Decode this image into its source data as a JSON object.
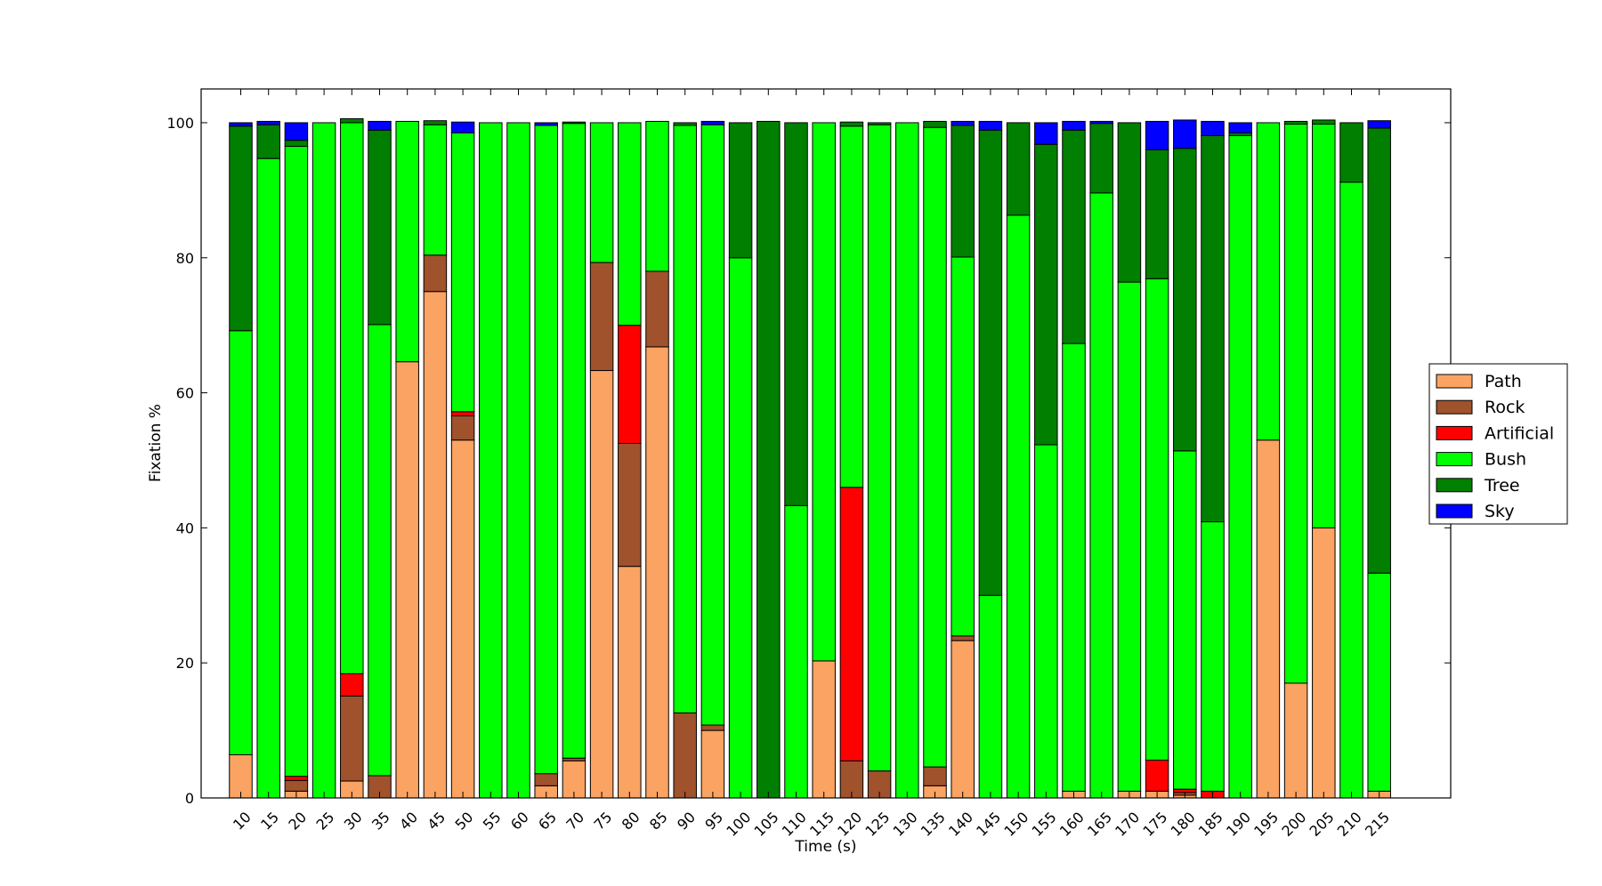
{
  "chart_data": {
    "type": "bar",
    "stacked": true,
    "title": "",
    "xlabel": "Time (s)",
    "ylabel": "Fixation %",
    "ylim": [
      0,
      105
    ],
    "yticks": [
      0,
      20,
      40,
      60,
      80,
      100
    ],
    "legend_position": "right",
    "categories": [
      "10",
      "15",
      "20",
      "25",
      "30",
      "35",
      "40",
      "45",
      "50",
      "55",
      "60",
      "65",
      "70",
      "75",
      "80",
      "85",
      "90",
      "95",
      "100",
      "105",
      "110",
      "115",
      "120",
      "125",
      "130",
      "135",
      "140",
      "145",
      "150",
      "155",
      "160",
      "165",
      "170",
      "175",
      "180",
      "185",
      "190",
      "195",
      "200",
      "205",
      "210",
      "215"
    ],
    "series": [
      {
        "name": "Path",
        "color": "#fba362",
        "values": [
          6.4,
          0,
          1,
          0,
          2.5,
          0,
          64.6,
          75,
          53,
          0,
          0,
          1.8,
          5.5,
          63.3,
          34.3,
          66.8,
          0,
          10,
          0,
          0,
          0,
          20.3,
          0,
          0,
          0,
          1.8,
          23.3,
          0,
          0,
          0,
          1,
          0,
          1,
          1,
          0.4,
          0,
          0,
          53,
          17,
          40,
          0,
          1
        ]
      },
      {
        "name": "Rock",
        "color": "#a0522d",
        "values": [
          0,
          0,
          1.6,
          0,
          12.6,
          3.3,
          0,
          5.4,
          3.6,
          0,
          0,
          1.8,
          0.4,
          16,
          18.2,
          11.2,
          12.6,
          0.8,
          0,
          0,
          0,
          0,
          5.5,
          4,
          0,
          2.8,
          0.7,
          0,
          0,
          0,
          0,
          0,
          0,
          0,
          0.4,
          0,
          0,
          0,
          0,
          0,
          0,
          0
        ]
      },
      {
        "name": "Artificial",
        "color": "#ff0000",
        "values": [
          0,
          0,
          0.6,
          0,
          3.3,
          0,
          0,
          0,
          0.6,
          0,
          0,
          0,
          0,
          0,
          17.5,
          0,
          0,
          0,
          0,
          0,
          0,
          0,
          40.5,
          0,
          0,
          0,
          0,
          0,
          0,
          0,
          0,
          0,
          0,
          4.6,
          0.5,
          1,
          0,
          0,
          0,
          0,
          0,
          0
        ]
      },
      {
        "name": "Bush",
        "color": "#00ff00",
        "values": [
          62.8,
          94.7,
          93.3,
          100,
          81.6,
          66.8,
          35.6,
          19.3,
          41.3,
          100,
          100,
          96,
          94,
          20.7,
          30,
          22.2,
          87,
          88.9,
          80,
          0,
          43.3,
          79.7,
          53.5,
          95.7,
          100,
          94.7,
          56.1,
          30,
          86.3,
          52.3,
          66.3,
          89.6,
          75.4,
          71.3,
          50.1,
          39.9,
          98.1,
          47,
          82.8,
          59.8,
          91.2,
          32.3
        ]
      },
      {
        "name": "Tree",
        "color": "#007f00",
        "values": [
          30.3,
          5,
          0.9,
          0,
          0.6,
          28.8,
          0,
          0.6,
          0,
          0,
          0,
          0,
          0.2,
          0,
          0,
          0,
          0.4,
          0,
          20,
          100.2,
          56.7,
          0,
          0.6,
          0.3,
          0,
          0.9,
          19.5,
          68.9,
          13.7,
          44.5,
          31.6,
          10.3,
          23.6,
          19.1,
          44.8,
          57.2,
          0.4,
          0,
          0.4,
          0.6,
          8.8,
          65.9
        ]
      },
      {
        "name": "Sky",
        "color": "#0000ff",
        "values": [
          0.5,
          0.5,
          2.6,
          0,
          0,
          1.3,
          0,
          0,
          1.6,
          0,
          0,
          0.4,
          0,
          0,
          0,
          0,
          0,
          0.5,
          0,
          0,
          0,
          0,
          0,
          0,
          0,
          0,
          0.6,
          1.3,
          0,
          3.2,
          1.3,
          0.3,
          0,
          4.2,
          4.2,
          2.1,
          1.5,
          0,
          0,
          0,
          0,
          1.1
        ]
      }
    ]
  }
}
